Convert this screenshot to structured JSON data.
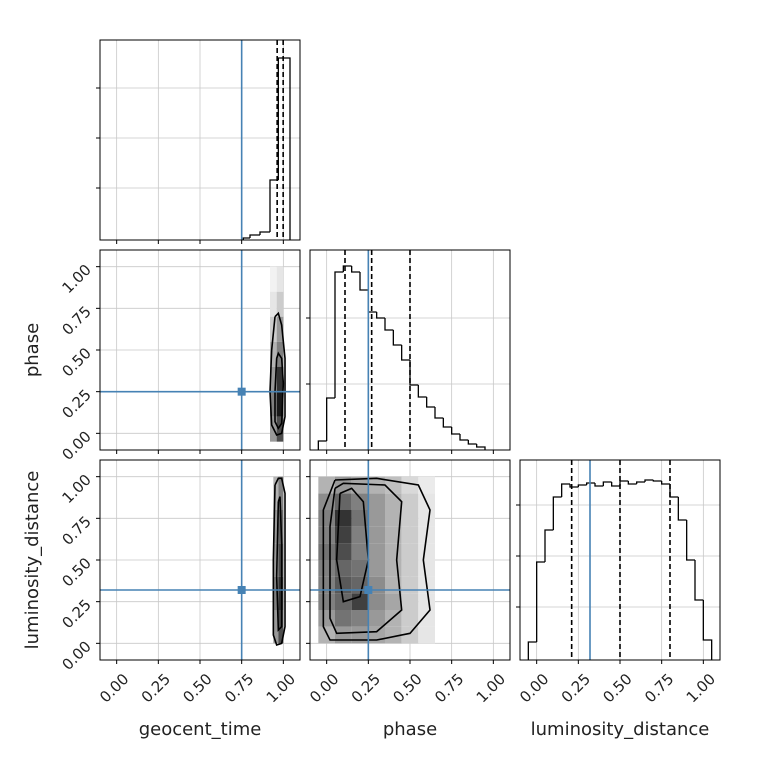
{
  "chart_data": {
    "type": "corner",
    "parameters": [
      "geocent_time",
      "phase",
      "luminosity_distance"
    ],
    "lim": [
      -0.1,
      1.1
    ],
    "ticks": [
      {
        "value": 0,
        "label": "0.00"
      },
      {
        "value": 0.25,
        "label": "0.25"
      },
      {
        "value": 0.5,
        "label": "0.50"
      },
      {
        "value": 0.75,
        "label": "0.75"
      },
      {
        "value": 1,
        "label": "1.00"
      }
    ],
    "truths": [
      0.75,
      0.25,
      0.32
    ],
    "truth_color": "#4682b4",
    "grid": true,
    "histograms": [
      {
        "bins": [
          0.76,
          0.8,
          0.86,
          0.92,
          0.97,
          1.04
        ],
        "counts": [
          2,
          5,
          8,
          60,
          182
        ],
        "ylim": [
          0,
          200
        ],
        "yticks": [
          52,
          102,
          152
        ],
        "quantiles": [
          0.963,
          0.999
        ]
      },
      {
        "bins": [
          -0.05,
          0,
          0.05,
          0.1,
          0.15,
          0.2,
          0.25,
          0.3,
          0.35,
          0.4,
          0.45,
          0.5,
          0.55,
          0.6,
          0.65,
          0.7,
          0.75,
          0.8,
          0.85,
          0.9,
          0.95
        ],
        "counts": [
          9,
          52,
          178,
          184,
          178,
          160,
          138,
          132,
          120,
          105,
          90,
          65,
          53,
          43,
          32,
          23,
          16,
          10,
          6,
          3
        ],
        "ylim": [
          0,
          200
        ],
        "yticks": [
          66,
          132
        ],
        "quantiles": [
          0.11,
          0.27,
          0.5
        ]
      },
      {
        "bins": [
          -0.05,
          0,
          0.05,
          0.1,
          0.15,
          0.2,
          0.25,
          0.3,
          0.35,
          0.4,
          0.45,
          0.5,
          0.55,
          0.6,
          0.65,
          0.7,
          0.75,
          0.8,
          0.85,
          0.9,
          0.95,
          1.0,
          1.05
        ],
        "counts": [
          18,
          98,
          130,
          163,
          176,
          173,
          175,
          177,
          174,
          178,
          174,
          179,
          176,
          178,
          180,
          179,
          176,
          163,
          140,
          100,
          60,
          20
        ],
        "ylim": [
          0,
          200
        ],
        "yticks": [
          53,
          104,
          155
        ],
        "quantiles": [
          0.21,
          0.5,
          0.8
        ]
      }
    ],
    "pairs": [
      {
        "x": 0,
        "y": 1,
        "density": {
          "x_edges": [
            0.92,
            0.96,
            1.0
          ],
          "y_edges": [
            -0.05,
            0.1,
            0.25,
            0.4,
            0.55,
            0.7,
            0.85,
            1.0
          ],
          "values": [
            [
              0.4,
              0.7
            ],
            [
              0.5,
              0.9
            ],
            [
              0.4,
              0.8
            ],
            [
              0.3,
              0.5
            ],
            [
              0.2,
              0.4
            ],
            [
              0.1,
              0.2
            ],
            [
              0.05,
              0.1
            ]
          ]
        },
        "contours": [
          {
            "x": [
              0.95,
              0.93,
              0.92,
              0.93,
              0.96,
              0.99,
              1.01,
              1.01,
              0.99,
              0.97,
              0.95
            ],
            "y": [
              0.7,
              0.5,
              0.25,
              0.05,
              -0.01,
              0.0,
              0.1,
              0.45,
              0.65,
              0.72,
              0.7
            ]
          },
          {
            "x": [
              0.96,
              0.95,
              0.95,
              0.97,
              0.99,
              1.0,
              0.99,
              0.97,
              0.96
            ],
            "y": [
              0.45,
              0.25,
              0.07,
              0.03,
              0.06,
              0.3,
              0.45,
              0.48,
              0.45
            ]
          }
        ]
      },
      {
        "x": 0,
        "y": 2,
        "density": {
          "x_edges": [
            0.94,
            0.97,
            1.0
          ],
          "y_edges": [
            0,
            0.2,
            0.4,
            0.6,
            0.8,
            1.0
          ],
          "values": [
            [
              0.4,
              0.7
            ],
            [
              0.5,
              0.8
            ],
            [
              0.4,
              0.7
            ],
            [
              0.4,
              0.6
            ],
            [
              0.3,
              0.5
            ]
          ]
        },
        "contours": [
          {
            "x": [
              0.95,
              0.94,
              0.94,
              0.96,
              0.99,
              1.01,
              1.01,
              0.99,
              0.97,
              0.95
            ],
            "y": [
              0.95,
              0.5,
              0.05,
              -0.01,
              0.0,
              0.1,
              0.9,
              0.99,
              0.99,
              0.95
            ]
          },
          {
            "x": [
              0.97,
              0.96,
              0.97,
              0.99,
              0.99,
              0.98,
              0.97
            ],
            "y": [
              0.85,
              0.4,
              0.08,
              0.1,
              0.6,
              0.88,
              0.85
            ]
          }
        ]
      },
      {
        "x": 1,
        "y": 2,
        "density": {
          "x_edges": [
            -0.05,
            0.05,
            0.15,
            0.25,
            0.35,
            0.45,
            0.55,
            0.65
          ],
          "y_edges": [
            0,
            0.1,
            0.2,
            0.3,
            0.4,
            0.5,
            0.6,
            0.7,
            0.8,
            0.9,
            1.0
          ],
          "values": [
            [
              0.3,
              0.4,
              0.4,
              0.35,
              0.3,
              0.2,
              0.1
            ],
            [
              0.4,
              0.55,
              0.5,
              0.4,
              0.3,
              0.2,
              0.1
            ],
            [
              0.5,
              0.6,
              0.75,
              0.45,
              0.35,
              0.2,
              0.1
            ],
            [
              0.5,
              0.65,
              0.6,
              0.45,
              0.3,
              0.2,
              0.1
            ],
            [
              0.5,
              0.6,
              0.55,
              0.4,
              0.3,
              0.2,
              0.1
            ],
            [
              0.55,
              0.7,
              0.5,
              0.4,
              0.3,
              0.2,
              0.1
            ],
            [
              0.5,
              0.75,
              0.5,
              0.4,
              0.3,
              0.2,
              0.1
            ],
            [
              0.5,
              0.8,
              0.55,
              0.4,
              0.3,
              0.2,
              0.1
            ],
            [
              0.45,
              0.6,
              0.5,
              0.4,
              0.3,
              0.2,
              0.1
            ],
            [
              0.3,
              0.4,
              0.35,
              0.3,
              0.25,
              0.15,
              0.08
            ]
          ]
        },
        "contours": [
          {
            "x": [
              0.05,
              -0.02,
              -0.02,
              0.02,
              0.3,
              0.5,
              0.62,
              0.58,
              0.62,
              0.55,
              0.3,
              0.05
            ],
            "y": [
              0.98,
              0.8,
              0.1,
              0.02,
              0.02,
              0.06,
              0.2,
              0.5,
              0.8,
              0.95,
              0.99,
              0.98
            ]
          },
          {
            "x": [
              0.05,
              0.02,
              0.02,
              0.06,
              0.3,
              0.45,
              0.42,
              0.45,
              0.35,
              0.1,
              0.05
            ],
            "y": [
              0.93,
              0.7,
              0.15,
              0.06,
              0.07,
              0.2,
              0.5,
              0.85,
              0.95,
              0.96,
              0.93
            ]
          },
          {
            "x": [
              0.08,
              0.06,
              0.1,
              0.2,
              0.25,
              0.22,
              0.15,
              0.08
            ],
            "y": [
              0.9,
              0.5,
              0.25,
              0.28,
              0.5,
              0.85,
              0.93,
              0.9
            ]
          }
        ]
      }
    ]
  }
}
